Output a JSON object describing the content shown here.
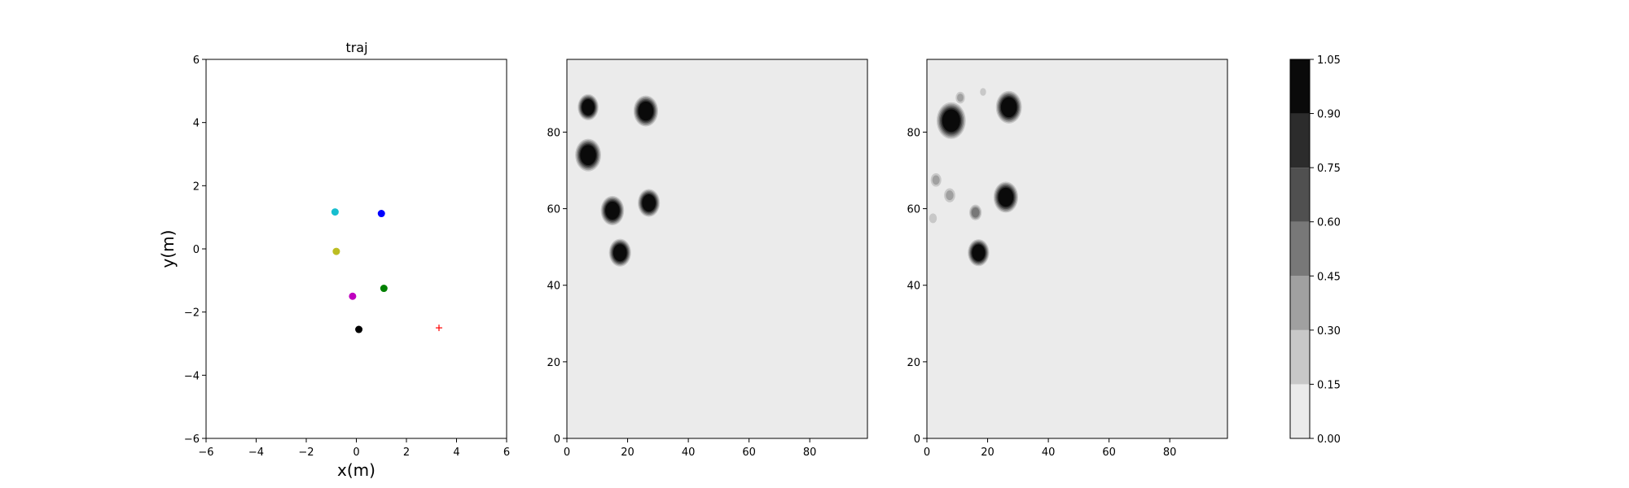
{
  "chart_data": [
    {
      "type": "scatter",
      "title": "traj",
      "xlabel": "x(m)",
      "ylabel": "y(m)",
      "xlim": [
        -6,
        6
      ],
      "ylim": [
        -6,
        6
      ],
      "xticks": [
        -6,
        -4,
        -2,
        0,
        2,
        4,
        6
      ],
      "yticks": [
        -6,
        -4,
        -2,
        0,
        2,
        4,
        6
      ],
      "grid": false,
      "points": [
        {
          "x": -0.85,
          "y": 1.17,
          "color": "#17becf",
          "marker": "dot"
        },
        {
          "x": 1.0,
          "y": 1.12,
          "color": "#0000ff",
          "marker": "dot"
        },
        {
          "x": -0.8,
          "y": -0.08,
          "color": "#bcbd22",
          "marker": "dot"
        },
        {
          "x": 1.1,
          "y": -1.25,
          "color": "#008000",
          "marker": "dot"
        },
        {
          "x": -0.15,
          "y": -1.5,
          "color": "#bf00bf",
          "marker": "dot"
        },
        {
          "x": 0.1,
          "y": -2.55,
          "color": "#000000",
          "marker": "dot"
        },
        {
          "x": 3.3,
          "y": -2.5,
          "color": "#ff0000",
          "marker": "plus"
        }
      ]
    },
    {
      "type": "heatmap",
      "title": "",
      "xlabel": "",
      "ylabel": "",
      "xlim": [
        0,
        99
      ],
      "ylim": [
        0,
        99
      ],
      "xticks": [
        0,
        20,
        40,
        60,
        80
      ],
      "yticks": [
        0,
        20,
        40,
        60,
        80
      ],
      "background_value": 0.05,
      "blobs": [
        {
          "cx": 7,
          "cy": 86.5,
          "r": 3.2,
          "value": 1.0
        },
        {
          "cx": 26,
          "cy": 85.5,
          "r": 3.8,
          "value": 1.0
        },
        {
          "cx": 7,
          "cy": 74,
          "r": 4.0,
          "value": 1.0
        },
        {
          "cx": 15,
          "cy": 59.5,
          "r": 3.6,
          "value": 1.0
        },
        {
          "cx": 27,
          "cy": 61.5,
          "r": 3.4,
          "value": 1.0
        },
        {
          "cx": 17.5,
          "cy": 48.5,
          "r": 3.4,
          "value": 1.0
        }
      ]
    },
    {
      "type": "heatmap",
      "title": "",
      "xlabel": "",
      "ylabel": "",
      "xlim": [
        0,
        99
      ],
      "ylim": [
        0,
        99
      ],
      "xticks": [
        0,
        20,
        40,
        60,
        80
      ],
      "yticks": [
        0,
        20,
        40,
        60,
        80
      ],
      "background_value": 0.05,
      "blobs": [
        {
          "cx": 8,
          "cy": 83,
          "r": 4.5,
          "value": 1.0
        },
        {
          "cx": 27,
          "cy": 86.5,
          "r": 4.0,
          "value": 1.0
        },
        {
          "cx": 26,
          "cy": 63,
          "r": 3.8,
          "value": 1.0
        },
        {
          "cx": 17,
          "cy": 48.5,
          "r": 3.3,
          "value": 1.0
        },
        {
          "cx": 16,
          "cy": 59,
          "r": 2.4,
          "value": 0.55
        },
        {
          "cx": 3,
          "cy": 67.5,
          "r": 2.3,
          "value": 0.35
        },
        {
          "cx": 7.5,
          "cy": 63.5,
          "r": 2.4,
          "value": 0.35
        },
        {
          "cx": 2,
          "cy": 57.5,
          "r": 1.9,
          "value": 0.25
        },
        {
          "cx": 18.5,
          "cy": 90.5,
          "r": 1.5,
          "value": 0.25
        },
        {
          "cx": 11,
          "cy": 89,
          "r": 2.0,
          "value": 0.35
        }
      ]
    },
    {
      "type": "colorbar",
      "levels": [
        0.0,
        0.15,
        0.3,
        0.45,
        0.6,
        0.75,
        0.9,
        1.05
      ],
      "tick_labels": [
        "0.00",
        "0.15",
        "0.30",
        "0.45",
        "0.60",
        "0.75",
        "0.90",
        "1.05"
      ],
      "colors": [
        "#ebebeb",
        "#c8c8c8",
        "#a0a0a0",
        "#787878",
        "#505050",
        "#2c2c2c",
        "#0a0a0a"
      ]
    }
  ]
}
